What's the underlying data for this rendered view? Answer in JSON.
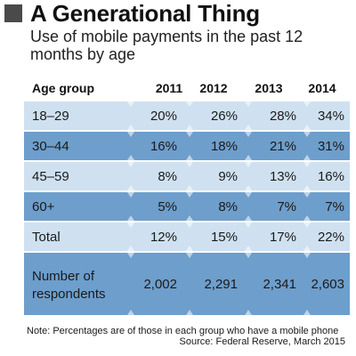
{
  "header": {
    "title": "A Generational Thing",
    "subtitle": "Use of mobile payments in the past 12 months by age"
  },
  "colors": {
    "light_row": "#cfe1f0",
    "dark_row": "#6e9ecb",
    "marker": "#4a4a4a"
  },
  "chart_data": {
    "type": "table",
    "columns": [
      "Age group",
      "2011",
      "2012",
      "2013",
      "2014"
    ],
    "rows": [
      {
        "label": "18–29",
        "values": [
          "20%",
          "26%",
          "28%",
          "34%"
        ]
      },
      {
        "label": "30–44",
        "values": [
          "16%",
          "18%",
          "21%",
          "31%"
        ]
      },
      {
        "label": "45–59",
        "values": [
          "8%",
          "9%",
          "13%",
          "16%"
        ]
      },
      {
        "label": "60+",
        "values": [
          "5%",
          "8%",
          "7%",
          "7%"
        ]
      },
      {
        "label": "Total",
        "values": [
          "12%",
          "15%",
          "17%",
          "22%"
        ]
      },
      {
        "label": "Number of respondents",
        "label_lines": [
          "Number of",
          "respondents"
        ],
        "values": [
          "2,002",
          "2,291",
          "2,341",
          "2,603"
        ]
      }
    ]
  },
  "footer": {
    "note": "Note: Percentages are of those in each group who have a mobile phone",
    "source": "Source: Federal Reserve, March 2015"
  }
}
